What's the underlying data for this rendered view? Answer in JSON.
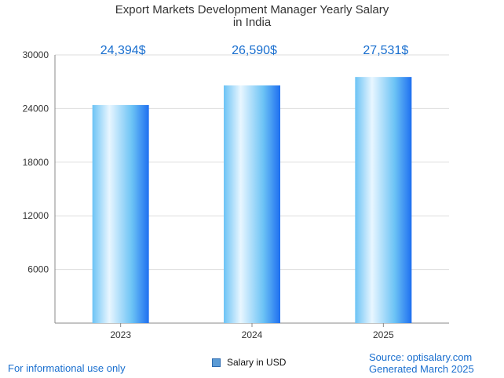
{
  "title_line1": "Export Markets Development Manager Yearly Salary",
  "title_line2": "in India",
  "footer": {
    "disclaimer": "For informational use only",
    "source": "Source: optisalary.com",
    "generated": "Generated March 2025"
  },
  "legend": {
    "label": "Salary in USD",
    "icon": "legend-square-icon"
  },
  "colors": {
    "bar_light": "#e8f6ff",
    "bar_mid": "#6cc3f5",
    "bar_dark": "#1e6ff0",
    "value_label": "#1a6fcf",
    "grid": "#dddddd",
    "axis": "#888888"
  },
  "chart_data": {
    "type": "bar",
    "categories": [
      "2023",
      "2024",
      "2025"
    ],
    "series": [
      {
        "name": "Salary in USD",
        "values": [
          24394,
          26590,
          27531
        ]
      }
    ],
    "value_labels": [
      "24,394$",
      "26,590$",
      "27,531$"
    ],
    "y_ticks": [
      "6000",
      "12000",
      "18000",
      "24000",
      "30000"
    ],
    "ylim": [
      0,
      30000
    ],
    "grid": true,
    "legend_position": "bottom"
  }
}
